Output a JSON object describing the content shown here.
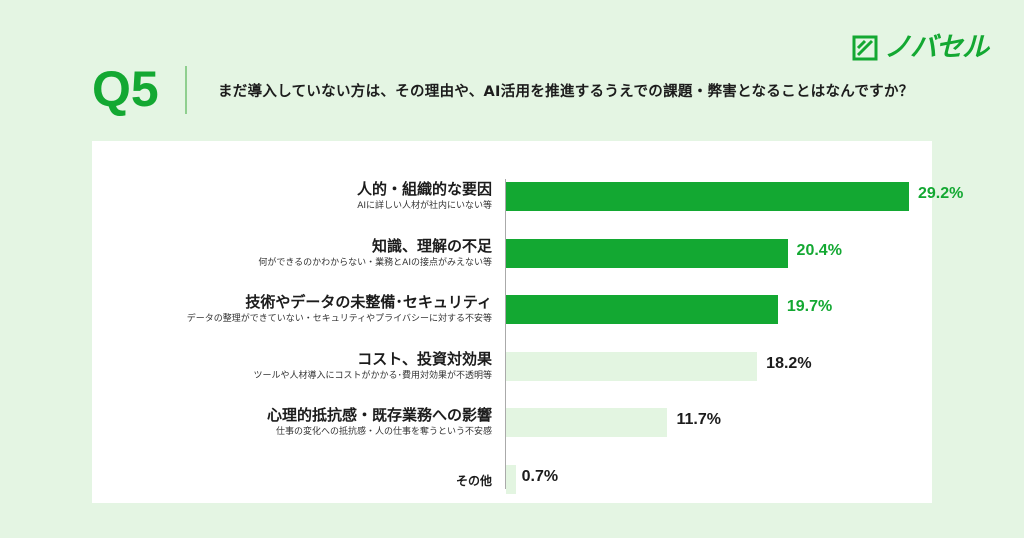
{
  "logo": {
    "text": "ノバセル",
    "color": "#13a832"
  },
  "question": {
    "label": "Q5",
    "text": "まだ導入していない方は、その理由や、AI活用を推進するうえでの課題・弊害となることはなんですか？"
  },
  "colors": {
    "highlight": "#13a832",
    "muted": "#e3f5e1",
    "highlight_text": "#13a832",
    "muted_text": "#1c1c1c"
  },
  "chart_data": {
    "type": "bar",
    "orientation": "horizontal",
    "categories": [
      "人的・組織的な要因",
      "知識、理解の不足",
      "技術やデータの未整備･セキュリティ",
      "コスト、投資対効果",
      "心理的抵抗感・既存業務への影響",
      "その他"
    ],
    "subtitles": [
      "AIに詳しい人材が社内にいない等",
      "何ができるのかわからない・業務とAIの接点がみえない等",
      "データの整理ができていない・セキュリティやプライバシーに対する不安等",
      "ツールや人材導入にコストがかかる･費用対効果が不透明等",
      "仕事の変化への抵抗感・人の仕事を奪うという不安感",
      ""
    ],
    "values": [
      29.2,
      20.4,
      19.7,
      18.2,
      11.7,
      0.7
    ],
    "value_labels": [
      "29.2%",
      "20.4%",
      "19.7%",
      "18.2%",
      "11.7%",
      "0.7%"
    ],
    "highlighted": [
      true,
      true,
      true,
      false,
      false,
      false
    ],
    "xlim": [
      0,
      35
    ],
    "grid": false,
    "legend": "none"
  }
}
